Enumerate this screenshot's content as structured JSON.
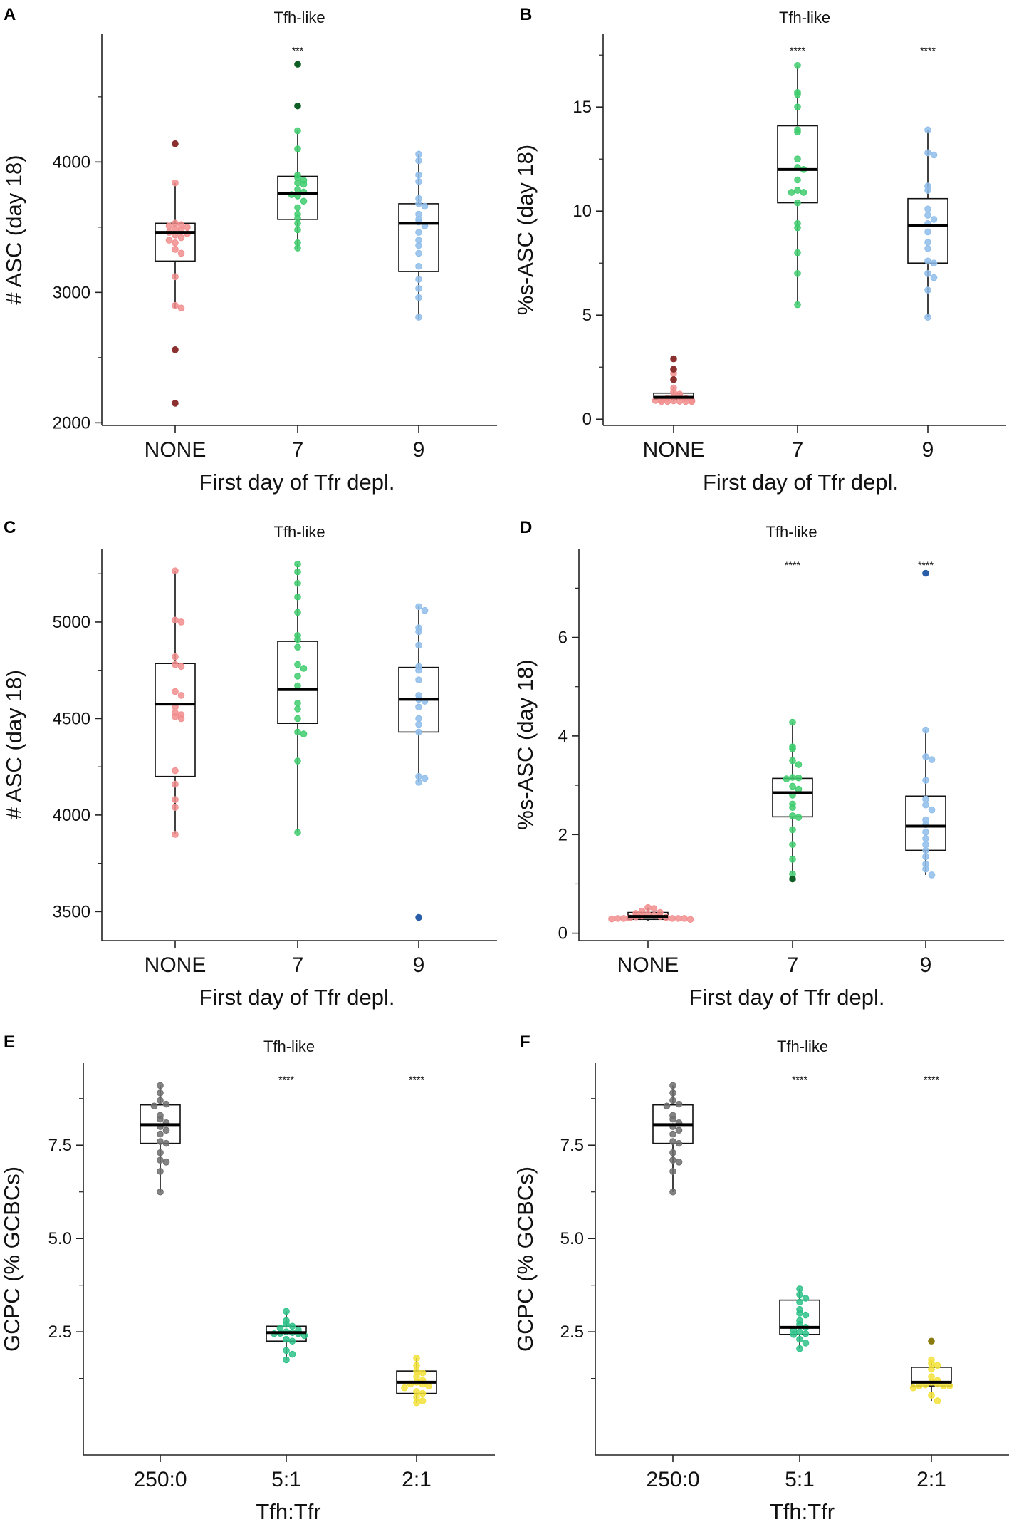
{
  "figure": {
    "panels": [
      "A",
      "B",
      "C",
      "D",
      "E",
      "F"
    ]
  },
  "chart_data": [
    {
      "panel": "A",
      "type": "box",
      "title": "Tfh-like",
      "xlabel": "First day of Tfr depl.",
      "ylabel": "# ASC (day 18)",
      "ylim": [
        1980,
        4980
      ],
      "yticks": [
        2000,
        3000,
        4000
      ],
      "minor_ticks": [
        2500,
        3500,
        4500
      ],
      "categories": [
        "NONE",
        "7",
        "9"
      ],
      "significance": [
        "",
        "***",
        ""
      ],
      "series": [
        {
          "name": "NONE",
          "color": "#f28e8e",
          "outlier_color": "#8b2f2f",
          "box": {
            "q1": 3240,
            "median": 3460,
            "q3": 3530,
            "whisker_low": 2880,
            "whisker_high": 3840
          },
          "points": [
            3840,
            3530,
            3520,
            3510,
            3500,
            3490,
            3480,
            3460,
            3450,
            3440,
            3420,
            3400,
            3380,
            3330,
            3300,
            3120,
            2900,
            2880
          ],
          "outliers": [
            4140,
            2560,
            2150
          ]
        },
        {
          "name": "7",
          "color": "#3fcc6e",
          "outlier_color": "#0e5e26",
          "box": {
            "q1": 3560,
            "median": 3760,
            "q3": 3890,
            "whisker_low": 3330,
            "whisker_high": 4240
          },
          "points": [
            4240,
            4100,
            3900,
            3880,
            3860,
            3840,
            3830,
            3790,
            3770,
            3750,
            3740,
            3700,
            3650,
            3600,
            3570,
            3530,
            3480,
            3380,
            3340
          ],
          "outliers": [
            4750,
            4430
          ]
        },
        {
          "name": "9",
          "color": "#8fbdea",
          "outlier_color": "#2a5ea8",
          "box": {
            "q1": 3160,
            "median": 3530,
            "q3": 3680,
            "whisker_low": 2800,
            "whisker_high": 4060
          },
          "points": [
            4060,
            4010,
            3900,
            3850,
            3720,
            3680,
            3660,
            3600,
            3560,
            3540,
            3510,
            3460,
            3400,
            3360,
            3300,
            3200,
            3100,
            3030,
            2960,
            2810
          ],
          "outliers": []
        }
      ]
    },
    {
      "panel": "B",
      "type": "box",
      "title": "Tfh-like",
      "xlabel": "First day of Tfr depl.",
      "ylabel": "%s-ASC (day 18)",
      "ylim": [
        -0.3,
        18.5
      ],
      "yticks": [
        0,
        5,
        10,
        15
      ],
      "minor_ticks": [
        2.5,
        7.5,
        12.5,
        17.5
      ],
      "categories": [
        "NONE",
        "7",
        "9"
      ],
      "significance": [
        "",
        "****",
        "****"
      ],
      "series": [
        {
          "name": "NONE",
          "color": "#f28e8e",
          "outlier_color": "#8b2f2f",
          "box": {
            "q1": 0.95,
            "median": 1.05,
            "q3": 1.25,
            "whisker_low": 0.85,
            "whisker_high": 1.55
          },
          "points": [
            2.2,
            1.5,
            1.3,
            1.2,
            1.1,
            1.05,
            1.0,
            1.0,
            0.95,
            0.9,
            0.9,
            0.88,
            0.86,
            0.85,
            0.85,
            0.85,
            0.85
          ],
          "outliers": [
            2.9,
            2.4,
            1.9
          ]
        },
        {
          "name": "7",
          "color": "#3fcc6e",
          "outlier_color": "#0e5e26",
          "box": {
            "q1": 10.4,
            "median": 12.0,
            "q3": 14.1,
            "whisker_low": 5.5,
            "whisker_high": 17.0
          },
          "points": [
            17.0,
            15.7,
            15.6,
            15.0,
            13.9,
            13.8,
            12.5,
            12.1,
            12.0,
            11.5,
            11.0,
            10.9,
            10.9,
            10.4,
            9.4,
            9.2,
            8.0,
            7.0,
            5.5
          ],
          "outliers": []
        },
        {
          "name": "9",
          "color": "#8fbdea",
          "outlier_color": "#2a5ea8",
          "box": {
            "q1": 7.5,
            "median": 9.3,
            "q3": 10.6,
            "whisker_low": 4.9,
            "whisker_high": 13.9
          },
          "points": [
            13.9,
            12.8,
            12.7,
            11.2,
            11.0,
            10.1,
            9.8,
            9.6,
            9.4,
            9.0,
            8.5,
            8.2,
            7.6,
            7.5,
            7.0,
            6.8,
            6.2,
            4.9
          ],
          "outliers": []
        }
      ]
    },
    {
      "panel": "C",
      "type": "box",
      "title": "Tfh-like",
      "xlabel": "First day of Tfr depl.",
      "ylabel": "# ASC (day 18)",
      "ylim": [
        3350,
        5380
      ],
      "yticks": [
        3500,
        4000,
        4500,
        5000
      ],
      "minor_ticks": [
        3750,
        4250,
        4750,
        5250
      ],
      "categories": [
        "NONE",
        "7",
        "9"
      ],
      "significance": [
        "",
        "",
        ""
      ],
      "series": [
        {
          "name": "NONE",
          "color": "#f28e8e",
          "outlier_color": "#8b2f2f",
          "box": {
            "q1": 4200,
            "median": 4575,
            "q3": 4785,
            "whisker_low": 3900,
            "whisker_high": 5265
          },
          "points": [
            5265,
            5010,
            5000,
            4820,
            4780,
            4770,
            4640,
            4620,
            4560,
            4530,
            4520,
            4510,
            4500,
            4230,
            4160,
            4080,
            4040,
            3900
          ],
          "outliers": []
        },
        {
          "name": "7",
          "color": "#3fcc6e",
          "outlier_color": "#0e5e26",
          "box": {
            "q1": 4475,
            "median": 4650,
            "q3": 4900,
            "whisker_low": 3910,
            "whisker_high": 5300
          },
          "points": [
            5300,
            5260,
            5200,
            5130,
            5050,
            4930,
            4910,
            4870,
            4780,
            4760,
            4720,
            4670,
            4580,
            4550,
            4500,
            4430,
            4420,
            4280,
            3910
          ],
          "outliers": []
        },
        {
          "name": "9",
          "color": "#8fbdea",
          "outlier_color": "#2a5ea8",
          "box": {
            "q1": 4430,
            "median": 4600,
            "q3": 4765,
            "whisker_low": 4170,
            "whisker_high": 5080
          },
          "points": [
            5080,
            5060,
            4970,
            4950,
            4880,
            4770,
            4750,
            4700,
            4620,
            4600,
            4590,
            4560,
            4500,
            4470,
            4430,
            4200,
            4190,
            4170
          ],
          "outliers": [
            3470
          ]
        }
      ]
    },
    {
      "panel": "D",
      "type": "box",
      "title": "Tfh-like",
      "xlabel": "First day of Tfr depl.",
      "ylabel": "%s-ASC (day 18)",
      "ylim": [
        -0.15,
        7.8
      ],
      "yticks": [
        0,
        2,
        4,
        6
      ],
      "minor_ticks": [
        1,
        3,
        5,
        7
      ],
      "categories": [
        "NONE",
        "7",
        "9"
      ],
      "significance": [
        "",
        "****",
        "****"
      ],
      "series": [
        {
          "name": "NONE",
          "color": "#f28e8e",
          "outlier_color": "#8b2f2f",
          "box": {
            "q1": 0.28,
            "median": 0.34,
            "q3": 0.42,
            "whisker_low": 0.25,
            "whisker_high": 0.52
          },
          "points": [
            0.52,
            0.5,
            0.45,
            0.42,
            0.4,
            0.38,
            0.36,
            0.35,
            0.34,
            0.33,
            0.32,
            0.31,
            0.3,
            0.3,
            0.3,
            0.3,
            0.3,
            0.29,
            0.28
          ],
          "outliers": []
        },
        {
          "name": "7",
          "color": "#3fcc6e",
          "outlier_color": "#0e5e26",
          "box": {
            "q1": 2.36,
            "median": 2.85,
            "q3": 3.14,
            "whisker_low": 1.2,
            "whisker_high": 4.28
          },
          "points": [
            4.28,
            3.78,
            3.74,
            3.5,
            3.42,
            3.16,
            3.15,
            3.13,
            2.98,
            2.92,
            2.8,
            2.62,
            2.55,
            2.38,
            2.35,
            2.1,
            1.8,
            1.5,
            1.2
          ],
          "outliers": [
            1.1
          ]
        },
        {
          "name": "9",
          "color": "#8fbdea",
          "outlier_color": "#2a5ea8",
          "box": {
            "q1": 1.68,
            "median": 2.17,
            "q3": 2.78,
            "whisker_low": 1.18,
            "whisker_high": 4.12
          },
          "points": [
            4.12,
            3.58,
            3.52,
            3.1,
            2.72,
            2.6,
            2.5,
            2.3,
            2.2,
            2.05,
            1.92,
            1.8,
            1.68,
            1.55,
            1.4,
            1.3,
            1.18
          ],
          "outliers": [
            7.3
          ]
        }
      ]
    },
    {
      "panel": "E",
      "type": "box",
      "title": "Tfh-like",
      "xlabel": "Tfh:Tfr",
      "ylabel": "GCPC (% GCBCs)",
      "ylim": [
        -0.8,
        9.7
      ],
      "yticks": [
        2.5,
        5.0,
        7.5
      ],
      "minor_ticks": [
        1.25,
        3.75,
        6.25,
        8.75
      ],
      "categories": [
        "250:0",
        "5:1",
        "2:1"
      ],
      "significance": [
        "",
        "****",
        "****"
      ],
      "series": [
        {
          "name": "250:0",
          "color": "#6e6e6e",
          "outlier_color": "#333333",
          "box": {
            "q1": 7.55,
            "median": 8.05,
            "q3": 8.58,
            "whisker_low": 6.25,
            "whisker_high": 9.1
          },
          "points": [
            9.1,
            8.9,
            8.7,
            8.6,
            8.55,
            8.3,
            8.2,
            8.1,
            8.0,
            7.9,
            7.8,
            7.6,
            7.55,
            7.3,
            7.1,
            7.05,
            6.8,
            6.25
          ],
          "outliers": []
        },
        {
          "name": "5:1",
          "color": "#2ec28a",
          "outlier_color": "#0e5e26",
          "box": {
            "q1": 2.25,
            "median": 2.48,
            "q3": 2.65,
            "whisker_low": 1.75,
            "whisker_high": 3.05
          },
          "points": [
            3.05,
            2.8,
            2.7,
            2.65,
            2.6,
            2.55,
            2.5,
            2.48,
            2.46,
            2.45,
            2.45,
            2.4,
            2.3,
            2.25,
            2.0,
            1.9,
            1.75
          ],
          "outliers": []
        },
        {
          "name": "2:1",
          "color": "#f2e23a",
          "outlier_color": "#8a7a10",
          "box": {
            "q1": 0.85,
            "median": 1.15,
            "q3": 1.45,
            "whisker_low": 0.6,
            "whisker_high": 1.8
          },
          "points": [
            1.8,
            1.6,
            1.45,
            1.4,
            1.3,
            1.2,
            1.15,
            1.1,
            1.1,
            1.05,
            1.0,
            0.9,
            0.85,
            0.75,
            0.65,
            0.6
          ],
          "outliers": []
        }
      ]
    },
    {
      "panel": "F",
      "type": "box",
      "title": "Tfh-like",
      "xlabel": "Tfh:Tfr",
      "ylabel": "GCPC (% GCBCs)",
      "ylim": [
        -0.8,
        9.7
      ],
      "yticks": [
        2.5,
        5.0,
        7.5
      ],
      "minor_ticks": [
        1.25,
        3.75,
        6.25,
        8.75
      ],
      "categories": [
        "250:0",
        "5:1",
        "2:1"
      ],
      "significance": [
        "",
        "****",
        "****"
      ],
      "series": [
        {
          "name": "250:0",
          "color": "#6e6e6e",
          "outlier_color": "#333333",
          "box": {
            "q1": 7.55,
            "median": 8.05,
            "q3": 8.58,
            "whisker_low": 6.25,
            "whisker_high": 9.1
          },
          "points": [
            9.1,
            8.9,
            8.7,
            8.6,
            8.55,
            8.3,
            8.2,
            8.1,
            8.0,
            7.9,
            7.8,
            7.6,
            7.55,
            7.3,
            7.1,
            7.05,
            6.8,
            6.25
          ],
          "outliers": []
        },
        {
          "name": "5:1",
          "color": "#2ec28a",
          "outlier_color": "#0e5e26",
          "box": {
            "q1": 2.43,
            "median": 2.62,
            "q3": 3.35,
            "whisker_low": 2.05,
            "whisker_high": 3.65
          },
          "points": [
            3.65,
            3.5,
            3.4,
            3.3,
            3.1,
            3.0,
            2.95,
            2.8,
            2.7,
            2.62,
            2.55,
            2.5,
            2.45,
            2.43,
            2.3,
            2.2,
            2.05
          ],
          "outliers": []
        },
        {
          "name": "2:1",
          "color": "#f2e23a",
          "outlier_color": "#8a7a10",
          "box": {
            "q1": 1.05,
            "median": 1.15,
            "q3": 1.55,
            "whisker_low": 0.65,
            "whisker_high": 1.75
          },
          "points": [
            1.75,
            1.65,
            1.6,
            1.5,
            1.3,
            1.2,
            1.15,
            1.1,
            1.08,
            1.05,
            1.05,
            1.05,
            1.0,
            0.8,
            0.65
          ],
          "outliers": [
            2.25
          ]
        }
      ]
    }
  ]
}
